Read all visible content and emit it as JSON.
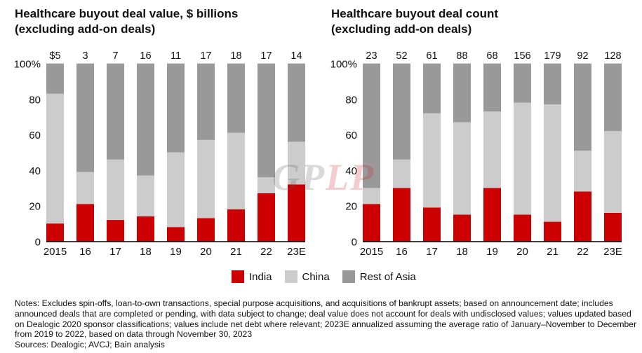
{
  "colors": {
    "india": "#cc0000",
    "china": "#cccccc",
    "rest_of_asia": "#999999",
    "axis": "#000000"
  },
  "legend": [
    {
      "key": "india",
      "label": "India"
    },
    {
      "key": "china",
      "label": "China"
    },
    {
      "key": "rest_of_asia",
      "label": "Rest of Asia"
    }
  ],
  "watermark": {
    "part1": "GP",
    "part2": "LP"
  },
  "notes": {
    "lines": [
      "Notes: Excludes spin-offs, loan-to-own transactions, special purpose acquisitions, and acquisitions of bankrupt assets; based on announcement date; includes",
      "announced deals that are completed or pending, with data subject to change; deal value does not account for deals with undisclosed values; values updated based",
      "on Dealogic 2020 sponsor classifications; values include net debt where relevant; 2023E annualized assuming the average ratio of January–November to December",
      "from 2019 to 2022, based on data through November 30, 2023"
    ],
    "sources": "Sources: Dealogic; AVCJ; Bain analysis"
  },
  "chart_data": [
    {
      "type": "bar",
      "stacked": true,
      "percent": true,
      "title_lines": [
        "Healthcare buyout deal value, $ billions",
        "(excluding add-on deals)"
      ],
      "categories": [
        "2015",
        "16",
        "17",
        "18",
        "19",
        "20",
        "21",
        "22",
        "23E"
      ],
      "totals": [
        "$5",
        "3",
        "7",
        "16",
        "11",
        "17",
        "18",
        "17",
        "14"
      ],
      "series": [
        {
          "name": "India",
          "key": "india",
          "values": [
            10,
            21,
            12,
            14,
            8,
            13,
            18,
            27,
            32
          ]
        },
        {
          "name": "China",
          "key": "china",
          "values": [
            73,
            18,
            34,
            23,
            42,
            44,
            43,
            9,
            24
          ]
        },
        {
          "name": "Rest of Asia",
          "key": "rest_of_asia",
          "values": [
            17,
            61,
            54,
            63,
            50,
            43,
            39,
            64,
            44
          ]
        }
      ],
      "yticks": [
        "0",
        "20",
        "40",
        "60",
        "80",
        "100%"
      ],
      "ylim": [
        0,
        100
      ],
      "xlabel": "",
      "ylabel": "",
      "grid": false,
      "legend": "bottom-center"
    },
    {
      "type": "bar",
      "stacked": true,
      "percent": true,
      "title_lines": [
        "Healthcare buyout deal count",
        "(excluding add-on deals)"
      ],
      "categories": [
        "2015",
        "16",
        "17",
        "18",
        "19",
        "20",
        "21",
        "22",
        "23E"
      ],
      "totals": [
        "23",
        "52",
        "61",
        "88",
        "68",
        "156",
        "179",
        "92",
        "128"
      ],
      "series": [
        {
          "name": "India",
          "key": "india",
          "values": [
            21,
            30,
            19,
            15,
            30,
            15,
            11,
            28,
            16
          ]
        },
        {
          "name": "China",
          "key": "china",
          "values": [
            9,
            16,
            53,
            52,
            43,
            63,
            66,
            23,
            46
          ]
        },
        {
          "name": "Rest of Asia",
          "key": "rest_of_asia",
          "values": [
            70,
            54,
            28,
            33,
            27,
            22,
            23,
            49,
            38
          ]
        }
      ],
      "yticks": [
        "0",
        "20",
        "40",
        "60",
        "80",
        "100%"
      ],
      "ylim": [
        0,
        100
      ],
      "xlabel": "",
      "ylabel": "",
      "grid": false,
      "legend": "bottom-center"
    }
  ]
}
